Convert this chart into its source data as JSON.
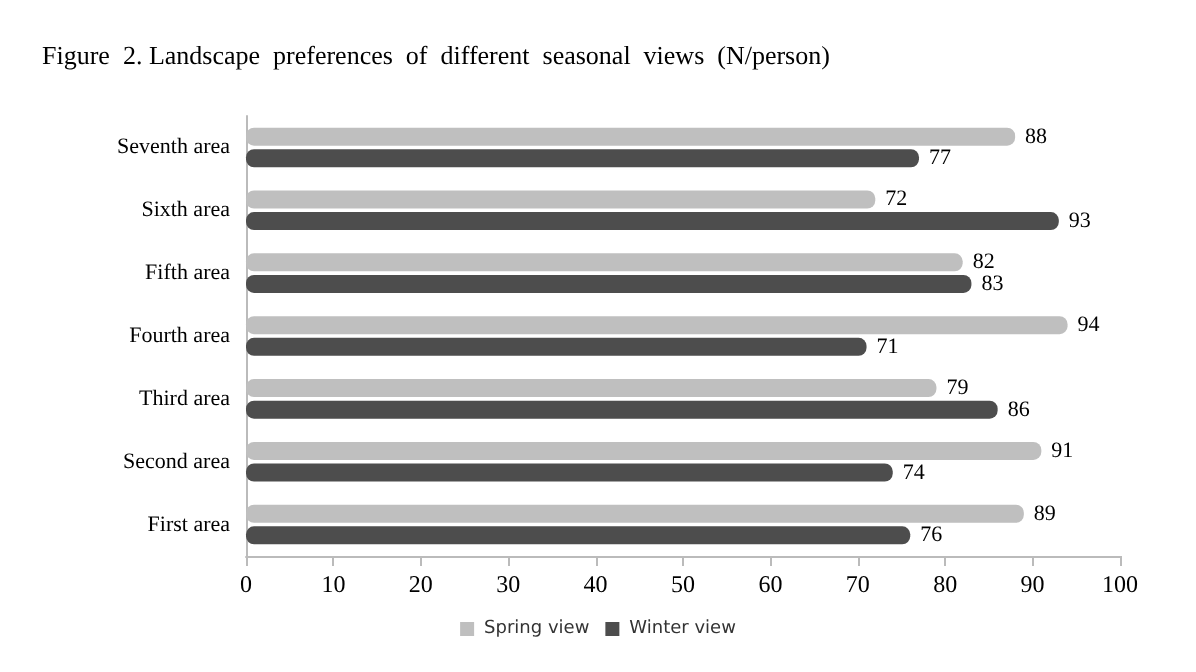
{
  "chart_data": {
    "type": "bar",
    "orientation": "horizontal",
    "title": "Figure  2. Landscape  preferences  of  different  seasonal  views  (N/person)",
    "categories": [
      "Seventh area",
      "Sixth area",
      "Fifth area",
      "Fourth area",
      "Third area",
      "Second area",
      "First area"
    ],
    "series": [
      {
        "name": "Spring view",
        "color": "#bfbfbf",
        "values": [
          88,
          72,
          82,
          94,
          79,
          91,
          89
        ]
      },
      {
        "name": "Winter view",
        "color": "#4d4d4d",
        "values": [
          77,
          93,
          83,
          71,
          86,
          74,
          76
        ]
      }
    ],
    "xlim": [
      0,
      100
    ],
    "xticks": [
      0,
      10,
      20,
      30,
      40,
      50,
      60,
      70,
      80,
      90,
      100
    ],
    "data_labels": true,
    "legend": "bottom",
    "grid": false
  }
}
